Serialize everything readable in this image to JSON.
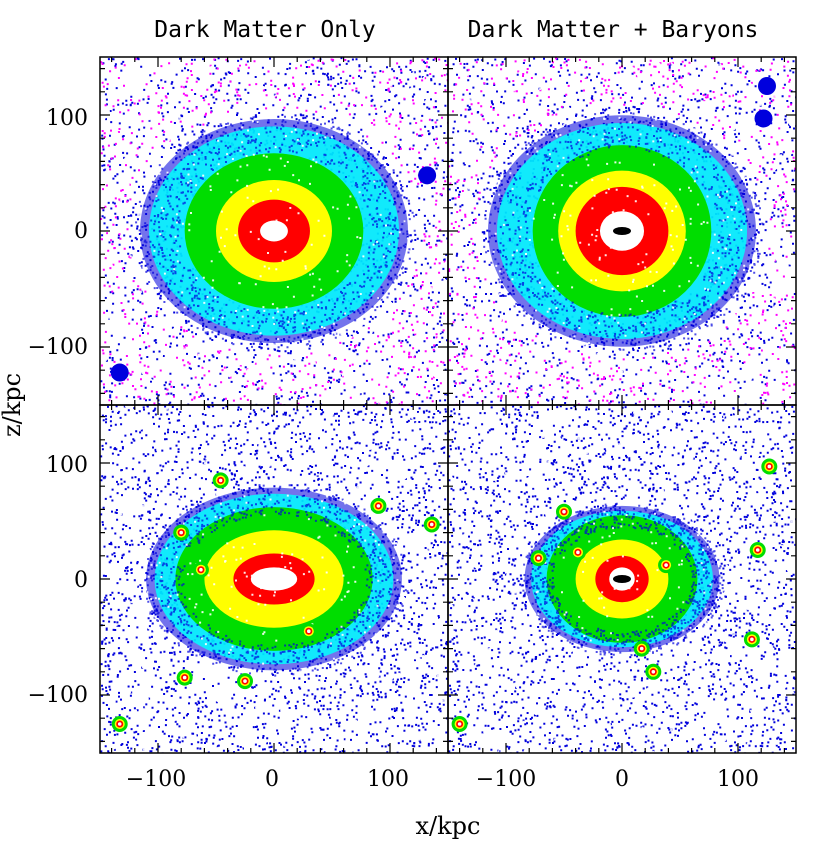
{
  "chart_data": {
    "type": "heatmap",
    "description": "Projected dark matter density maps of a simulated galaxy halo, x-z plane",
    "xlabel": "x/kpc",
    "ylabel": "z/kpc",
    "xlim": [
      -150,
      150
    ],
    "ylim": [
      -150,
      150
    ],
    "xticks": [
      -100,
      0,
      100
    ],
    "yticks": [
      -100,
      0,
      100
    ],
    "xtick_labels": [
      "−100",
      "0",
      "100"
    ],
    "ytick_labels": [
      "100",
      "0",
      "−100"
    ],
    "columns": [
      "Dark Matter Only",
      "Dark Matter + Baryons"
    ],
    "density_levels": [
      {
        "name": "lowest",
        "color": "#ff00ff"
      },
      {
        "name": "low",
        "color": "#0000dd"
      },
      {
        "name": "medium-low",
        "color": "#00ffff"
      },
      {
        "name": "medium",
        "color": "#00dd00"
      },
      {
        "name": "medium-high",
        "color": "#ffff00"
      },
      {
        "name": "high",
        "color": "#ff0000"
      },
      {
        "name": "highest",
        "color": "#ffffff"
      },
      {
        "name": "core",
        "color": "#000000"
      }
    ],
    "panels": [
      {
        "name": "top-left",
        "column": "Dark Matter Only",
        "row": "top",
        "halo": {
          "center": [
            0,
            0
          ],
          "rx": 110,
          "ry": 92
        },
        "contours": {
          "white": [
            12,
            9
          ],
          "red": [
            31,
            27
          ],
          "yellow": [
            50,
            44
          ],
          "green": [
            77,
            67
          ]
        },
        "core": false,
        "subhalos": [
          [
            132,
            48
          ],
          [
            -133,
            -122
          ]
        ]
      },
      {
        "name": "top-right",
        "column": "Dark Matter + Baryons",
        "row": "top",
        "halo": {
          "center": [
            0,
            0
          ],
          "rx": 110,
          "ry": 95
        },
        "contours": {
          "white": [
            19,
            17
          ],
          "red": [
            40,
            38
          ],
          "yellow": [
            55,
            52
          ],
          "green": [
            77,
            74
          ]
        },
        "core": true,
        "subhalos": [
          [
            122,
            97
          ],
          [
            125,
            125
          ]
        ]
      },
      {
        "name": "bottom-left",
        "column": "Dark Matter Only",
        "row": "bottom",
        "halo": {
          "center": [
            0,
            0
          ],
          "rx": 105,
          "ry": 75
        },
        "contours": {
          "white": [
            20,
            10
          ],
          "red": [
            35,
            22
          ],
          "yellow": [
            60,
            42
          ],
          "green": [
            85,
            62
          ]
        },
        "core": false,
        "subhalos": [
          [
            -46,
            85
          ],
          [
            90,
            63
          ],
          [
            136,
            47
          ],
          [
            -63,
            8
          ],
          [
            30,
            -45
          ],
          [
            -25,
            -88
          ],
          [
            -133,
            -125
          ],
          [
            -77,
            -85
          ],
          [
            -80,
            40
          ]
        ]
      },
      {
        "name": "bottom-right",
        "column": "Dark Matter + Baryons",
        "row": "bottom",
        "halo": {
          "center": [
            0,
            0
          ],
          "rx": 80,
          "ry": 60
        },
        "contours": {
          "white": [
            11,
            10
          ],
          "red": [
            23,
            20
          ],
          "yellow": [
            40,
            34
          ],
          "green": [
            65,
            55
          ]
        },
        "core": true,
        "subhalos": [
          [
            127,
            97
          ],
          [
            -50,
            58
          ],
          [
            -72,
            18
          ],
          [
            -38,
            23
          ],
          [
            38,
            12
          ],
          [
            17,
            -60
          ],
          [
            27,
            -80
          ],
          [
            112,
            -52
          ],
          [
            -140,
            -125
          ],
          [
            117,
            25
          ]
        ]
      }
    ]
  }
}
